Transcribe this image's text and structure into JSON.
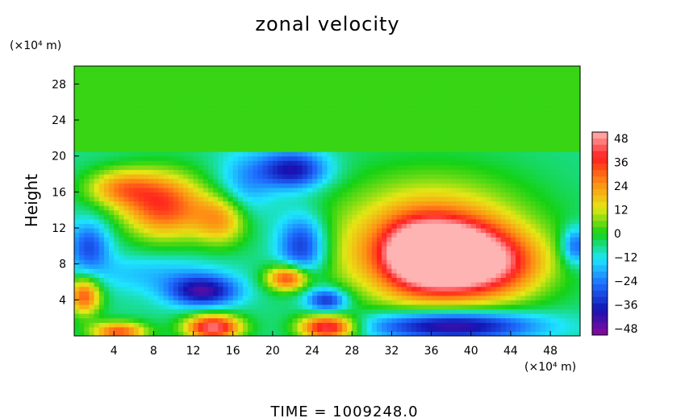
{
  "chart_data": {
    "type": "heatmap",
    "title": "zonal velocity",
    "ylabel": "Height",
    "x_unit_label": "(×10⁴ m)",
    "y_unit_label": "(×10⁴ m)",
    "footer": "TIME = 1009248.0",
    "x_ticks": [
      "4",
      "8",
      "12",
      "16",
      "20",
      "24",
      "28",
      "32",
      "36",
      "40",
      "44",
      "48"
    ],
    "y_ticks": [
      "4",
      "8",
      "12",
      "16",
      "20",
      "24",
      "28"
    ],
    "xlim": [
      0,
      51
    ],
    "ylim": [
      0,
      30
    ],
    "colorbar": {
      "ticks": [
        "48",
        "36",
        "24",
        "12",
        "0",
        "−12",
        "−24",
        "−36",
        "−48"
      ],
      "range": [
        -48,
        48
      ],
      "colors": [
        "#8a0a9a",
        "#1414b4",
        "#1e6eff",
        "#1ee6ff",
        "#14d214",
        "#e6e614",
        "#ff8c14",
        "#ff1e1e",
        "#ffb4b4"
      ]
    },
    "regions": [
      {
        "x": 25.5,
        "y": 25.5,
        "sx": 26,
        "sy": 5,
        "value": 2
      },
      {
        "x": 36,
        "y": 9,
        "sx": 4,
        "sy": 2.6,
        "value": 48
      },
      {
        "x": 36,
        "y": 10,
        "sx": 7,
        "sy": 5,
        "value": 30
      },
      {
        "x": 42,
        "y": 8,
        "sx": 4,
        "sy": 2.5,
        "value": 22
      },
      {
        "x": 38,
        "y": 1.2,
        "sx": 6,
        "sy": 1.2,
        "value": -48
      },
      {
        "x": 9,
        "y": 14.5,
        "sx": 3,
        "sy": 2.6,
        "value": 32
      },
      {
        "x": 4.5,
        "y": 16.5,
        "sx": 2.5,
        "sy": 1.5,
        "value": 18
      },
      {
        "x": 15,
        "y": 13,
        "sx": 2,
        "sy": 2,
        "value": 22
      },
      {
        "x": 22,
        "y": 18.5,
        "sx": 2.5,
        "sy": 1.5,
        "value": -38
      },
      {
        "x": 23,
        "y": 10,
        "sx": 1.8,
        "sy": 2.5,
        "value": -36
      },
      {
        "x": 13,
        "y": 5,
        "sx": 2.5,
        "sy": 1.2,
        "value": -40
      },
      {
        "x": 25.5,
        "y": 4,
        "sx": 1.5,
        "sy": 1,
        "value": -36
      },
      {
        "x": 17,
        "y": 16,
        "sx": 2,
        "sy": 3,
        "value": -20
      },
      {
        "x": 8,
        "y": 7,
        "sx": 5,
        "sy": 1.5,
        "value": -16
      },
      {
        "x": 14,
        "y": 1,
        "sx": 2,
        "sy": 1,
        "value": 44
      },
      {
        "x": 25.5,
        "y": 1,
        "sx": 2,
        "sy": 1,
        "value": 42
      },
      {
        "x": 4.5,
        "y": 0.5,
        "sx": 2,
        "sy": 0.8,
        "value": 30
      },
      {
        "x": 21.5,
        "y": 6.5,
        "sx": 1.5,
        "sy": 1,
        "value": 34
      },
      {
        "x": 1,
        "y": 4.5,
        "sx": 1.2,
        "sy": 1.5,
        "value": 30
      },
      {
        "x": 30.5,
        "y": 9,
        "sx": 2,
        "sy": 3,
        "value": -14
      },
      {
        "x": 1.5,
        "y": 10,
        "sx": 1.5,
        "sy": 2,
        "value": -28
      },
      {
        "x": 50.5,
        "y": 10,
        "sx": 1,
        "sy": 1.5,
        "value": -30
      }
    ]
  }
}
